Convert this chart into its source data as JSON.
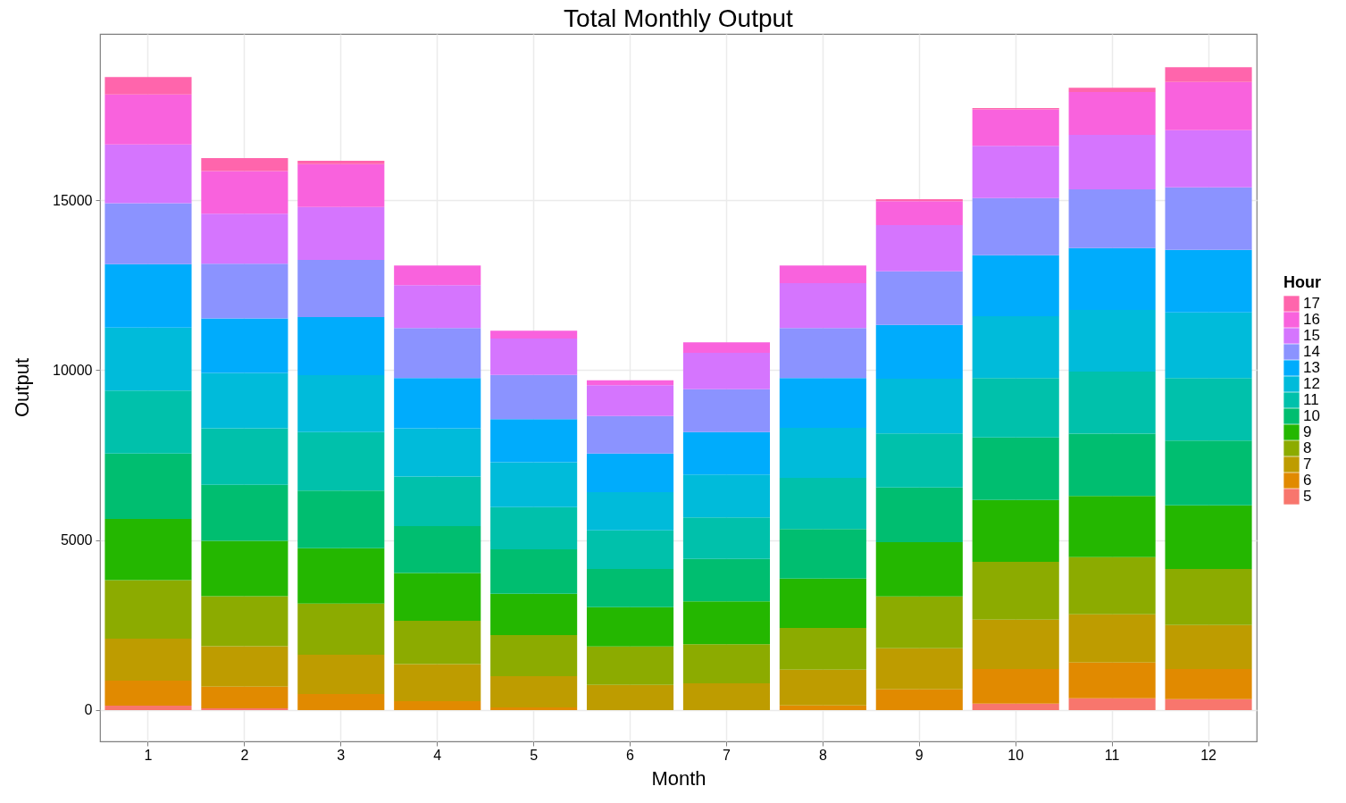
{
  "chart_data": {
    "type": "bar",
    "title": "Total Monthly Output",
    "xlabel": "Month",
    "ylabel": "Output",
    "legend_title": "Hour",
    "categories": [
      "1",
      "2",
      "3",
      "4",
      "5",
      "6",
      "7",
      "8",
      "9",
      "10",
      "11",
      "12"
    ],
    "stacked": true,
    "legend": "right",
    "grid": true,
    "ylim": [
      -920,
      19890
    ],
    "yticks": [
      0,
      5000,
      10000,
      15000
    ],
    "series": [
      {
        "name": "5",
        "color": "#f8766d",
        "values": [
          130,
          50,
          0,
          0,
          0,
          0,
          0,
          0,
          0,
          190,
          350,
          320
        ]
      },
      {
        "name": "6",
        "color": "#e18a00",
        "values": [
          740,
          640,
          470,
          260,
          80,
          0,
          0,
          140,
          610,
          1020,
          1050,
          890
        ]
      },
      {
        "name": "7",
        "color": "#be9c00",
        "values": [
          1230,
          1190,
          1160,
          1090,
          920,
          740,
          790,
          1050,
          1210,
          1450,
          1420,
          1290
        ]
      },
      {
        "name": "8",
        "color": "#8cab00",
        "values": [
          1720,
          1470,
          1500,
          1280,
          1210,
          1130,
          1150,
          1230,
          1520,
          1700,
          1680,
          1650
        ]
      },
      {
        "name": "9",
        "color": "#24b700",
        "values": [
          1800,
          1630,
          1630,
          1400,
          1210,
          1160,
          1260,
          1450,
          1600,
          1820,
          1800,
          1870
        ]
      },
      {
        "name": "10",
        "color": "#00be70",
        "values": [
          1930,
          1650,
          1700,
          1380,
          1310,
          1120,
          1250,
          1460,
          1610,
          1840,
          1830,
          1910
        ]
      },
      {
        "name": "11",
        "color": "#00c1ab",
        "values": [
          1850,
          1660,
          1720,
          1460,
          1240,
          1140,
          1220,
          1500,
          1590,
          1750,
          1830,
          1840
        ]
      },
      {
        "name": "12",
        "color": "#00bbda",
        "values": [
          1850,
          1630,
          1670,
          1420,
          1320,
          1120,
          1260,
          1470,
          1610,
          1820,
          1810,
          1930
        ]
      },
      {
        "name": "13",
        "color": "#00acfc",
        "values": [
          1870,
          1600,
          1710,
          1480,
          1270,
          1140,
          1250,
          1470,
          1580,
          1790,
          1820,
          1840
        ]
      },
      {
        "name": "14",
        "color": "#8b93ff",
        "values": [
          1790,
          1610,
          1680,
          1470,
          1300,
          1100,
          1260,
          1470,
          1580,
          1680,
          1730,
          1840
        ]
      },
      {
        "name": "15",
        "color": "#d575fe",
        "values": [
          1730,
          1470,
          1560,
          1260,
          1070,
          910,
          1070,
          1320,
          1360,
          1540,
          1600,
          1680
        ]
      },
      {
        "name": "16",
        "color": "#f962dd",
        "values": [
          1470,
          1260,
          1260,
          580,
          230,
          140,
          310,
          520,
          700,
          1070,
          1260,
          1420
        ]
      },
      {
        "name": "17",
        "color": "#ff65ac",
        "values": [
          510,
          380,
          100,
          0,
          0,
          0,
          0,
          0,
          60,
          40,
          130,
          430
        ]
      }
    ]
  }
}
